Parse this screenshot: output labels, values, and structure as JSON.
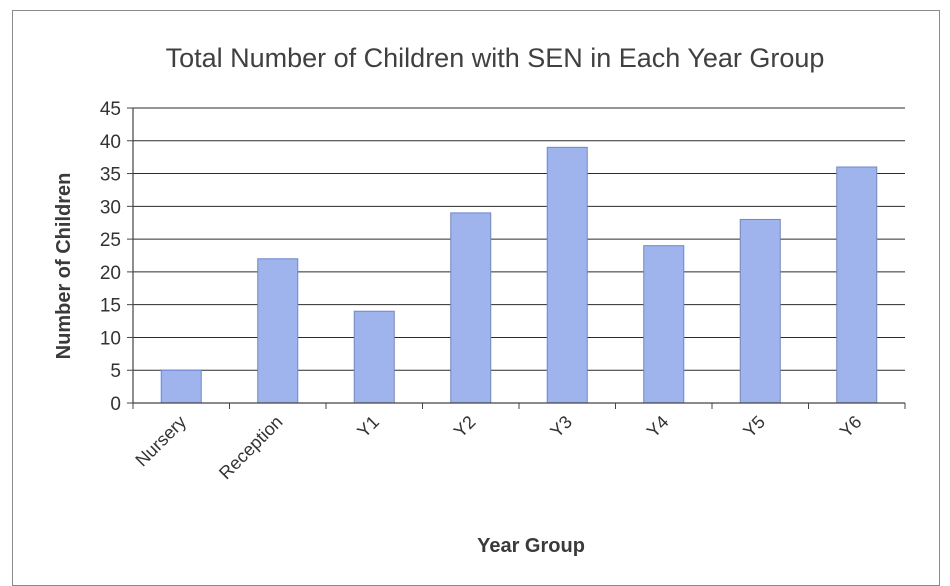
{
  "chart_data": {
    "type": "bar",
    "title": "Total Number of Children with SEN in Each Year Group",
    "xlabel": "Year Group",
    "ylabel": "Number of Children",
    "categories": [
      "Nursery",
      "Reception",
      "Y1",
      "Y2",
      "Y3",
      "Y4",
      "Y5",
      "Y6"
    ],
    "values": [
      5,
      22,
      14,
      29,
      39,
      24,
      28,
      36
    ],
    "ylim": [
      0,
      45
    ],
    "yticks": [
      "0",
      "5",
      "10",
      "15",
      "20",
      "25",
      "30",
      "35",
      "40",
      "45"
    ],
    "grid": true,
    "legend": "none",
    "colors": {
      "bar_fill": "#9fb3ec",
      "bar_stroke": "#6f86cf",
      "grid": "#2b2b2b"
    }
  }
}
